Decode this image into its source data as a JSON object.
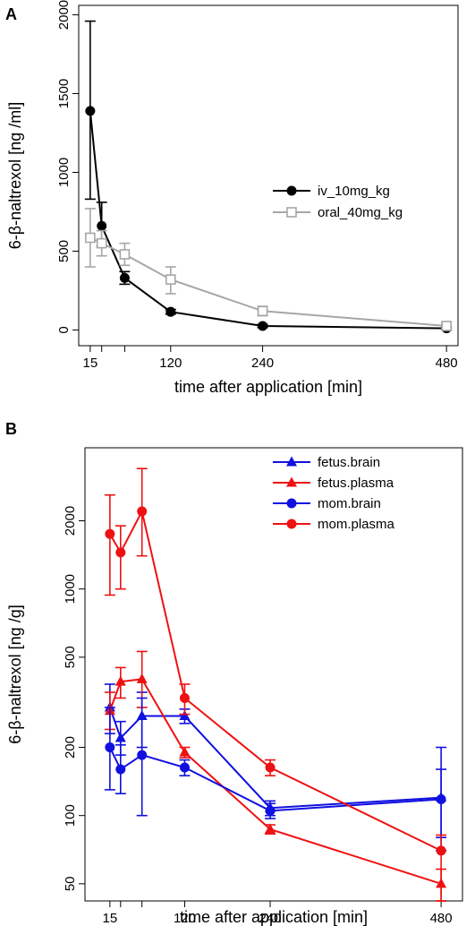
{
  "chart_data": [
    {
      "panel": "A",
      "type": "line",
      "xlabel": "time after application [min]",
      "ylabel": "6-β-naltrexol [ng /ml]",
      "x_ticks": [
        15,
        120,
        240,
        480
      ],
      "x_minor_ticks": [
        30,
        60
      ],
      "y_ticks": [
        0,
        500,
        1000,
        1500,
        2000
      ],
      "xlim": [
        0,
        495
      ],
      "ylim": [
        -100,
        2060
      ],
      "y_scale": "linear",
      "grid": false,
      "legend_position": "right",
      "series": [
        {
          "name": "iv_10mg_kg",
          "color": "#000000",
          "marker": "filled-circle",
          "x": [
            15,
            30,
            60,
            120,
            240,
            480
          ],
          "y": [
            1390,
            660,
            330,
            115,
            25,
            10
          ],
          "err_low": [
            830,
            530,
            290,
            100,
            15,
            0
          ],
          "err_high": [
            1960,
            810,
            370,
            130,
            35,
            20
          ]
        },
        {
          "name": "oral_40mg_kg",
          "color": "#a6a6a6",
          "marker": "open-square",
          "x": [
            15,
            30,
            60,
            120,
            240,
            480
          ],
          "y": [
            585,
            550,
            480,
            320,
            120,
            25
          ],
          "err_low": [
            400,
            470,
            410,
            230,
            90,
            10
          ],
          "err_high": [
            770,
            630,
            550,
            400,
            150,
            40
          ]
        }
      ]
    },
    {
      "panel": "B",
      "type": "line",
      "xlabel": "time after application [min]",
      "ylabel": "6-β-naltrexol [ng /g]",
      "x_ticks": [
        15,
        120,
        240,
        480
      ],
      "x_minor_ticks": [
        30,
        60
      ],
      "y_ticks": [
        50,
        100,
        200,
        500,
        1000,
        2000
      ],
      "xlim": [
        -20,
        510
      ],
      "ylim": [
        42,
        4200
      ],
      "y_scale": "log",
      "grid": false,
      "legend_position": "top-right",
      "series": [
        {
          "name": "fetus.brain",
          "color": "#1010e0",
          "marker": "filled-triangle",
          "x": [
            15,
            30,
            60,
            120,
            240,
            480
          ],
          "y": [
            300,
            220,
            275,
            275,
            108,
            120
          ],
          "err_low": [
            230,
            185,
            200,
            255,
            100,
            80
          ],
          "err_high": [
            380,
            260,
            350,
            295,
            116,
            160
          ]
        },
        {
          "name": "fetus.plasma",
          "color": "#ee1111",
          "marker": "filled-triangle",
          "x": [
            15,
            30,
            60,
            120,
            240,
            480
          ],
          "y": [
            290,
            390,
            400,
            190,
            87,
            50
          ],
          "err_low": [
            240,
            330,
            300,
            180,
            83,
            42
          ],
          "err_high": [
            350,
            450,
            530,
            200,
            91,
            58
          ]
        },
        {
          "name": "mom.brain",
          "color": "#1010e0",
          "marker": "filled-circle",
          "x": [
            15,
            30,
            60,
            120,
            240,
            480
          ],
          "y": [
            200,
            160,
            185,
            163,
            105,
            118
          ],
          "err_low": [
            130,
            125,
            100,
            150,
            97,
            70
          ],
          "err_high": [
            300,
            205,
            330,
            176,
            113,
            200
          ]
        },
        {
          "name": "mom.plasma",
          "color": "#ee1111",
          "marker": "filled-circle",
          "x": [
            15,
            30,
            60,
            120,
            240,
            480
          ],
          "y": [
            1750,
            1450,
            2200,
            330,
            163,
            70
          ],
          "err_low": [
            940,
            1000,
            1400,
            280,
            150,
            42
          ],
          "err_high": [
            2600,
            1900,
            3400,
            380,
            176,
            82
          ]
        }
      ]
    }
  ]
}
